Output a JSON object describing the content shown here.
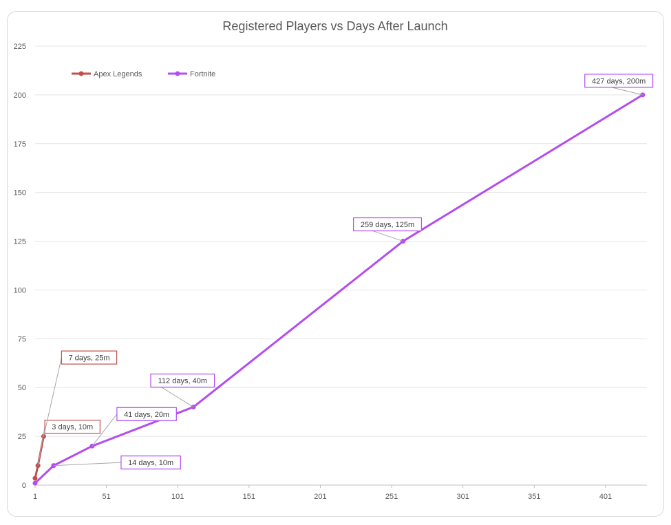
{
  "chart_data": {
    "type": "line",
    "title": "Registered Players vs Days After Launch",
    "xlabel": "",
    "ylabel": "",
    "xlim": [
      1,
      430
    ],
    "ylim": [
      0,
      225
    ],
    "x_ticks": [
      1,
      51,
      101,
      151,
      201,
      251,
      301,
      351,
      401
    ],
    "y_ticks": [
      0,
      25,
      50,
      75,
      100,
      125,
      150,
      175,
      200,
      225
    ],
    "grid": true,
    "legend_position": "top-left",
    "series": [
      {
        "name": "Apex Legends",
        "color": "#c0504d",
        "points": [
          {
            "x": 1,
            "y": 3.5
          },
          {
            "x": 3,
            "y": 10
          },
          {
            "x": 7,
            "y": 25
          }
        ],
        "annotations": [
          {
            "x": 3,
            "y": 10,
            "label": "3 days, 10m"
          },
          {
            "x": 7,
            "y": 25,
            "label": "7 days, 25m"
          }
        ]
      },
      {
        "name": "Fortnite",
        "color": "#b44cf0",
        "points": [
          {
            "x": 1,
            "y": 1
          },
          {
            "x": 14,
            "y": 10
          },
          {
            "x": 41,
            "y": 20
          },
          {
            "x": 112,
            "y": 40
          },
          {
            "x": 259,
            "y": 125
          },
          {
            "x": 427,
            "y": 200
          }
        ],
        "annotations": [
          {
            "x": 14,
            "y": 10,
            "label": "14 days, 10m"
          },
          {
            "x": 41,
            "y": 20,
            "label": "41 days, 20m"
          },
          {
            "x": 112,
            "y": 40,
            "label": "112 days, 40m"
          },
          {
            "x": 259,
            "y": 125,
            "label": "259 days, 125m"
          },
          {
            "x": 427,
            "y": 200,
            "label": "427 days, 200m"
          }
        ]
      }
    ]
  }
}
